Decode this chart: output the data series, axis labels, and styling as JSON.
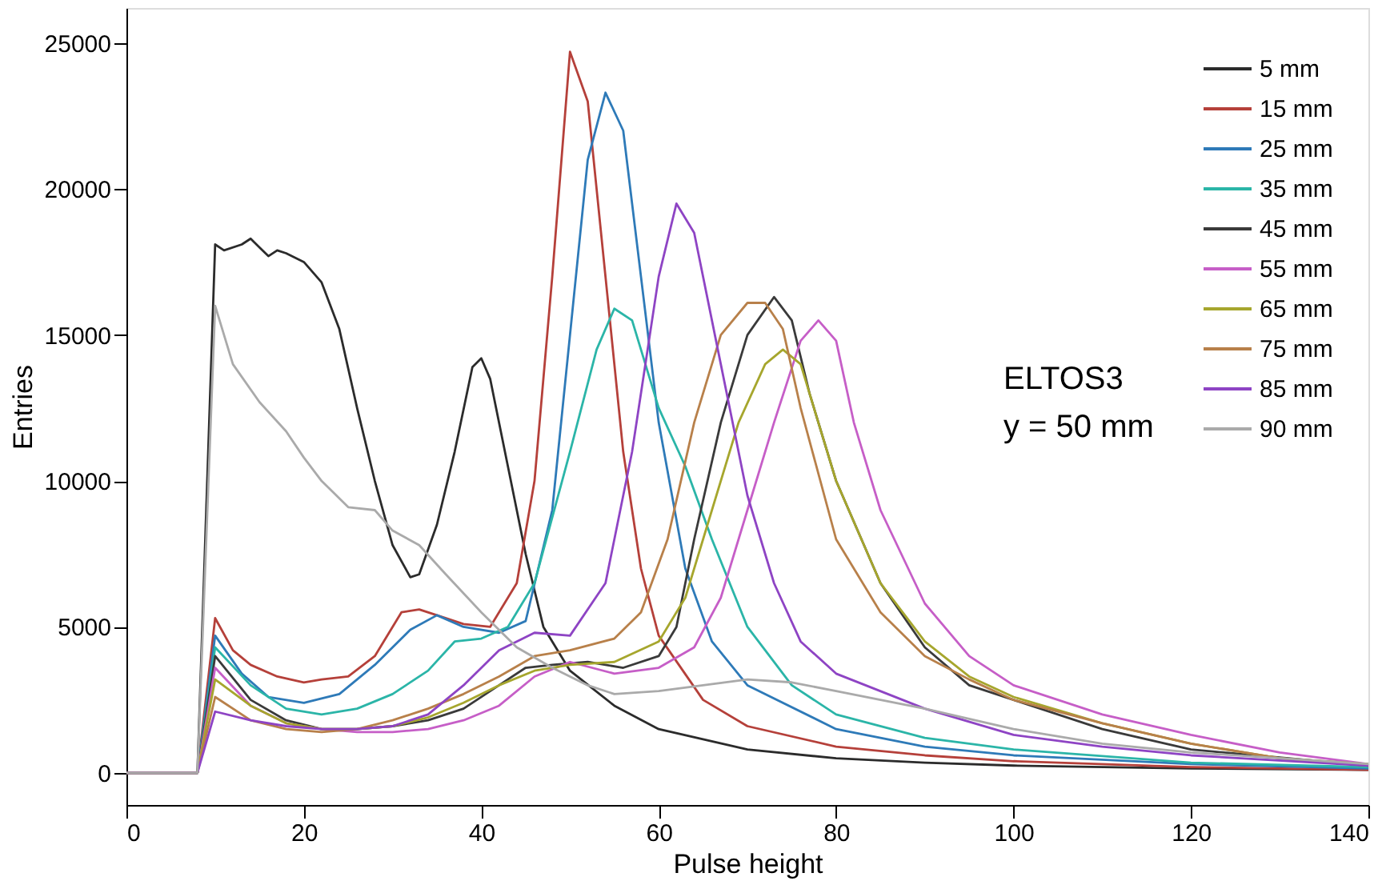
{
  "chart_data": {
    "type": "line",
    "xlabel": "Pulse height",
    "ylabel": "Entries",
    "xlim": [
      0,
      140
    ],
    "ylim": [
      -1100,
      26200
    ],
    "xticks": [
      0,
      20,
      40,
      60,
      80,
      100,
      120,
      140
    ],
    "yticks": [
      0,
      5000,
      10000,
      15000,
      20000,
      25000
    ],
    "grid": false,
    "legend": "top right",
    "marker": "none",
    "line_style": "solid",
    "annotations": [
      "ELTOS3",
      "y = 50 mm"
    ],
    "series": [
      {
        "name": "5 mm",
        "color": "#2b2b2b",
        "x": [
          0,
          8,
          10,
          11,
          13,
          14,
          15,
          16,
          17,
          18,
          20,
          22,
          24,
          26,
          28,
          30,
          32,
          33,
          35,
          37,
          39,
          40,
          41,
          43,
          45,
          47,
          50,
          55,
          60,
          70,
          80,
          90,
          100,
          120,
          140
        ],
        "values": [
          0,
          0,
          18100,
          17900,
          18100,
          18300,
          18000,
          17700,
          17900,
          17800,
          17500,
          16800,
          15200,
          12500,
          10000,
          7800,
          6700,
          6800,
          8500,
          11000,
          13900,
          14200,
          13500,
          10500,
          7500,
          5000,
          3500,
          2300,
          1500,
          800,
          500,
          350,
          250,
          150,
          100
        ]
      },
      {
        "name": "15 mm",
        "color": "#b5403a",
        "x": [
          0,
          8,
          10,
          12,
          14,
          17,
          20,
          22,
          25,
          28,
          31,
          33,
          35,
          38,
          41,
          44,
          46,
          48,
          50,
          52,
          54,
          56,
          58,
          60,
          65,
          70,
          80,
          90,
          100,
          120,
          140
        ],
        "values": [
          0,
          0,
          5300,
          4200,
          3700,
          3300,
          3100,
          3200,
          3300,
          4000,
          5500,
          5600,
          5400,
          5100,
          5000,
          6500,
          10000,
          17000,
          24700,
          23000,
          17000,
          11000,
          7000,
          4700,
          2500,
          1600,
          900,
          600,
          400,
          200,
          100
        ]
      },
      {
        "name": "25 mm",
        "color": "#2e7ab8",
        "x": [
          0,
          8,
          10,
          13,
          16,
          20,
          24,
          28,
          32,
          35,
          38,
          42,
          45,
          48,
          50,
          52,
          54,
          56,
          58,
          60,
          63,
          66,
          70,
          80,
          90,
          100,
          120,
          140
        ],
        "values": [
          0,
          0,
          4700,
          3400,
          2600,
          2400,
          2700,
          3700,
          4900,
          5400,
          5000,
          4800,
          5200,
          9000,
          15000,
          21000,
          23300,
          22000,
          17000,
          12000,
          7000,
          4500,
          3000,
          1500,
          900,
          600,
          300,
          150
        ]
      },
      {
        "name": "35 mm",
        "color": "#2bb5a8",
        "x": [
          0,
          8,
          10,
          14,
          18,
          22,
          26,
          30,
          34,
          37,
          40,
          43,
          46,
          50,
          53,
          55,
          57,
          60,
          63,
          66,
          70,
          75,
          80,
          90,
          100,
          120,
          140
        ],
        "values": [
          0,
          0,
          4300,
          3000,
          2200,
          2000,
          2200,
          2700,
          3500,
          4500,
          4600,
          5000,
          6500,
          11000,
          14500,
          15900,
          15500,
          12500,
          10500,
          8000,
          5000,
          3000,
          2000,
          1200,
          800,
          350,
          200
        ]
      },
      {
        "name": "45 mm",
        "color": "#3a3a3a",
        "x": [
          0,
          8,
          10,
          14,
          18,
          22,
          26,
          30,
          34,
          38,
          42,
          45,
          48,
          52,
          56,
          60,
          62,
          64,
          67,
          70,
          73,
          75,
          77,
          80,
          85,
          90,
          95,
          100,
          110,
          120,
          140
        ],
        "values": [
          0,
          0,
          4000,
          2500,
          1800,
          1500,
          1500,
          1600,
          1800,
          2200,
          3000,
          3600,
          3700,
          3800,
          3600,
          4000,
          5000,
          8000,
          12000,
          15000,
          16300,
          15500,
          13000,
          10000,
          6500,
          4300,
          3000,
          2500,
          1500,
          800,
          250
        ]
      },
      {
        "name": "55 mm",
        "color": "#c65ec7",
        "x": [
          0,
          8,
          10,
          14,
          18,
          22,
          26,
          30,
          34,
          38,
          42,
          46,
          50,
          55,
          60,
          64,
          67,
          70,
          73,
          76,
          78,
          80,
          82,
          85,
          90,
          95,
          100,
          110,
          120,
          130,
          140
        ],
        "values": [
          0,
          0,
          3600,
          2300,
          1700,
          1500,
          1400,
          1400,
          1500,
          1800,
          2300,
          3300,
          3800,
          3400,
          3600,
          4300,
          6000,
          9000,
          12000,
          14800,
          15500,
          14800,
          12000,
          9000,
          5800,
          4000,
          3000,
          2000,
          1300,
          700,
          300
        ]
      },
      {
        "name": "65 mm",
        "color": "#a6a62d",
        "x": [
          0,
          8,
          10,
          14,
          18,
          22,
          26,
          30,
          34,
          38,
          42,
          46,
          50,
          55,
          60,
          63,
          66,
          69,
          72,
          74,
          76,
          78,
          80,
          85,
          90,
          95,
          100,
          110,
          120,
          130,
          140
        ],
        "values": [
          0,
          0,
          3200,
          2300,
          1700,
          1500,
          1500,
          1600,
          1900,
          2400,
          3000,
          3500,
          3700,
          3800,
          4500,
          6000,
          9000,
          12000,
          14000,
          14500,
          14000,
          12000,
          10000,
          6500,
          4500,
          3300,
          2600,
          1700,
          1000,
          500,
          300
        ]
      },
      {
        "name": "75 mm",
        "color": "#b8804a",
        "x": [
          0,
          8,
          10,
          14,
          18,
          22,
          26,
          30,
          34,
          38,
          42,
          46,
          50,
          55,
          58,
          61,
          64,
          67,
          70,
          72,
          74,
          76,
          80,
          85,
          90,
          95,
          100,
          110,
          120,
          130,
          140
        ],
        "values": [
          0,
          0,
          2600,
          1800,
          1500,
          1400,
          1500,
          1800,
          2200,
          2700,
          3300,
          4000,
          4200,
          4600,
          5500,
          8000,
          12000,
          15000,
          16100,
          16100,
          15200,
          12500,
          8000,
          5500,
          4000,
          3200,
          2500,
          1700,
          1000,
          500,
          250
        ]
      },
      {
        "name": "85 mm",
        "color": "#8e44c4",
        "x": [
          0,
          8,
          10,
          14,
          18,
          22,
          26,
          30,
          34,
          38,
          42,
          46,
          50,
          54,
          57,
          60,
          62,
          64,
          67,
          70,
          73,
          76,
          80,
          90,
          100,
          110,
          120,
          140
        ],
        "values": [
          0,
          0,
          2100,
          1800,
          1600,
          1500,
          1500,
          1600,
          2000,
          3000,
          4200,
          4800,
          4700,
          6500,
          11000,
          17000,
          19500,
          18500,
          14000,
          9500,
          6500,
          4500,
          3400,
          2200,
          1300,
          900,
          600,
          250
        ]
      },
      {
        "name": "90 mm",
        "color": "#aaaaaa",
        "x": [
          0,
          8,
          10,
          12,
          15,
          18,
          20,
          22,
          25,
          28,
          30,
          33,
          36,
          40,
          44,
          48,
          52,
          55,
          60,
          65,
          70,
          75,
          80,
          90,
          100,
          110,
          120,
          140
        ],
        "values": [
          0,
          0,
          16000,
          14000,
          12700,
          11700,
          10800,
          10000,
          9100,
          9000,
          8300,
          7800,
          6800,
          5500,
          4300,
          3600,
          3000,
          2700,
          2800,
          3000,
          3200,
          3100,
          2800,
          2200,
          1500,
          1000,
          700,
          300
        ]
      }
    ]
  }
}
